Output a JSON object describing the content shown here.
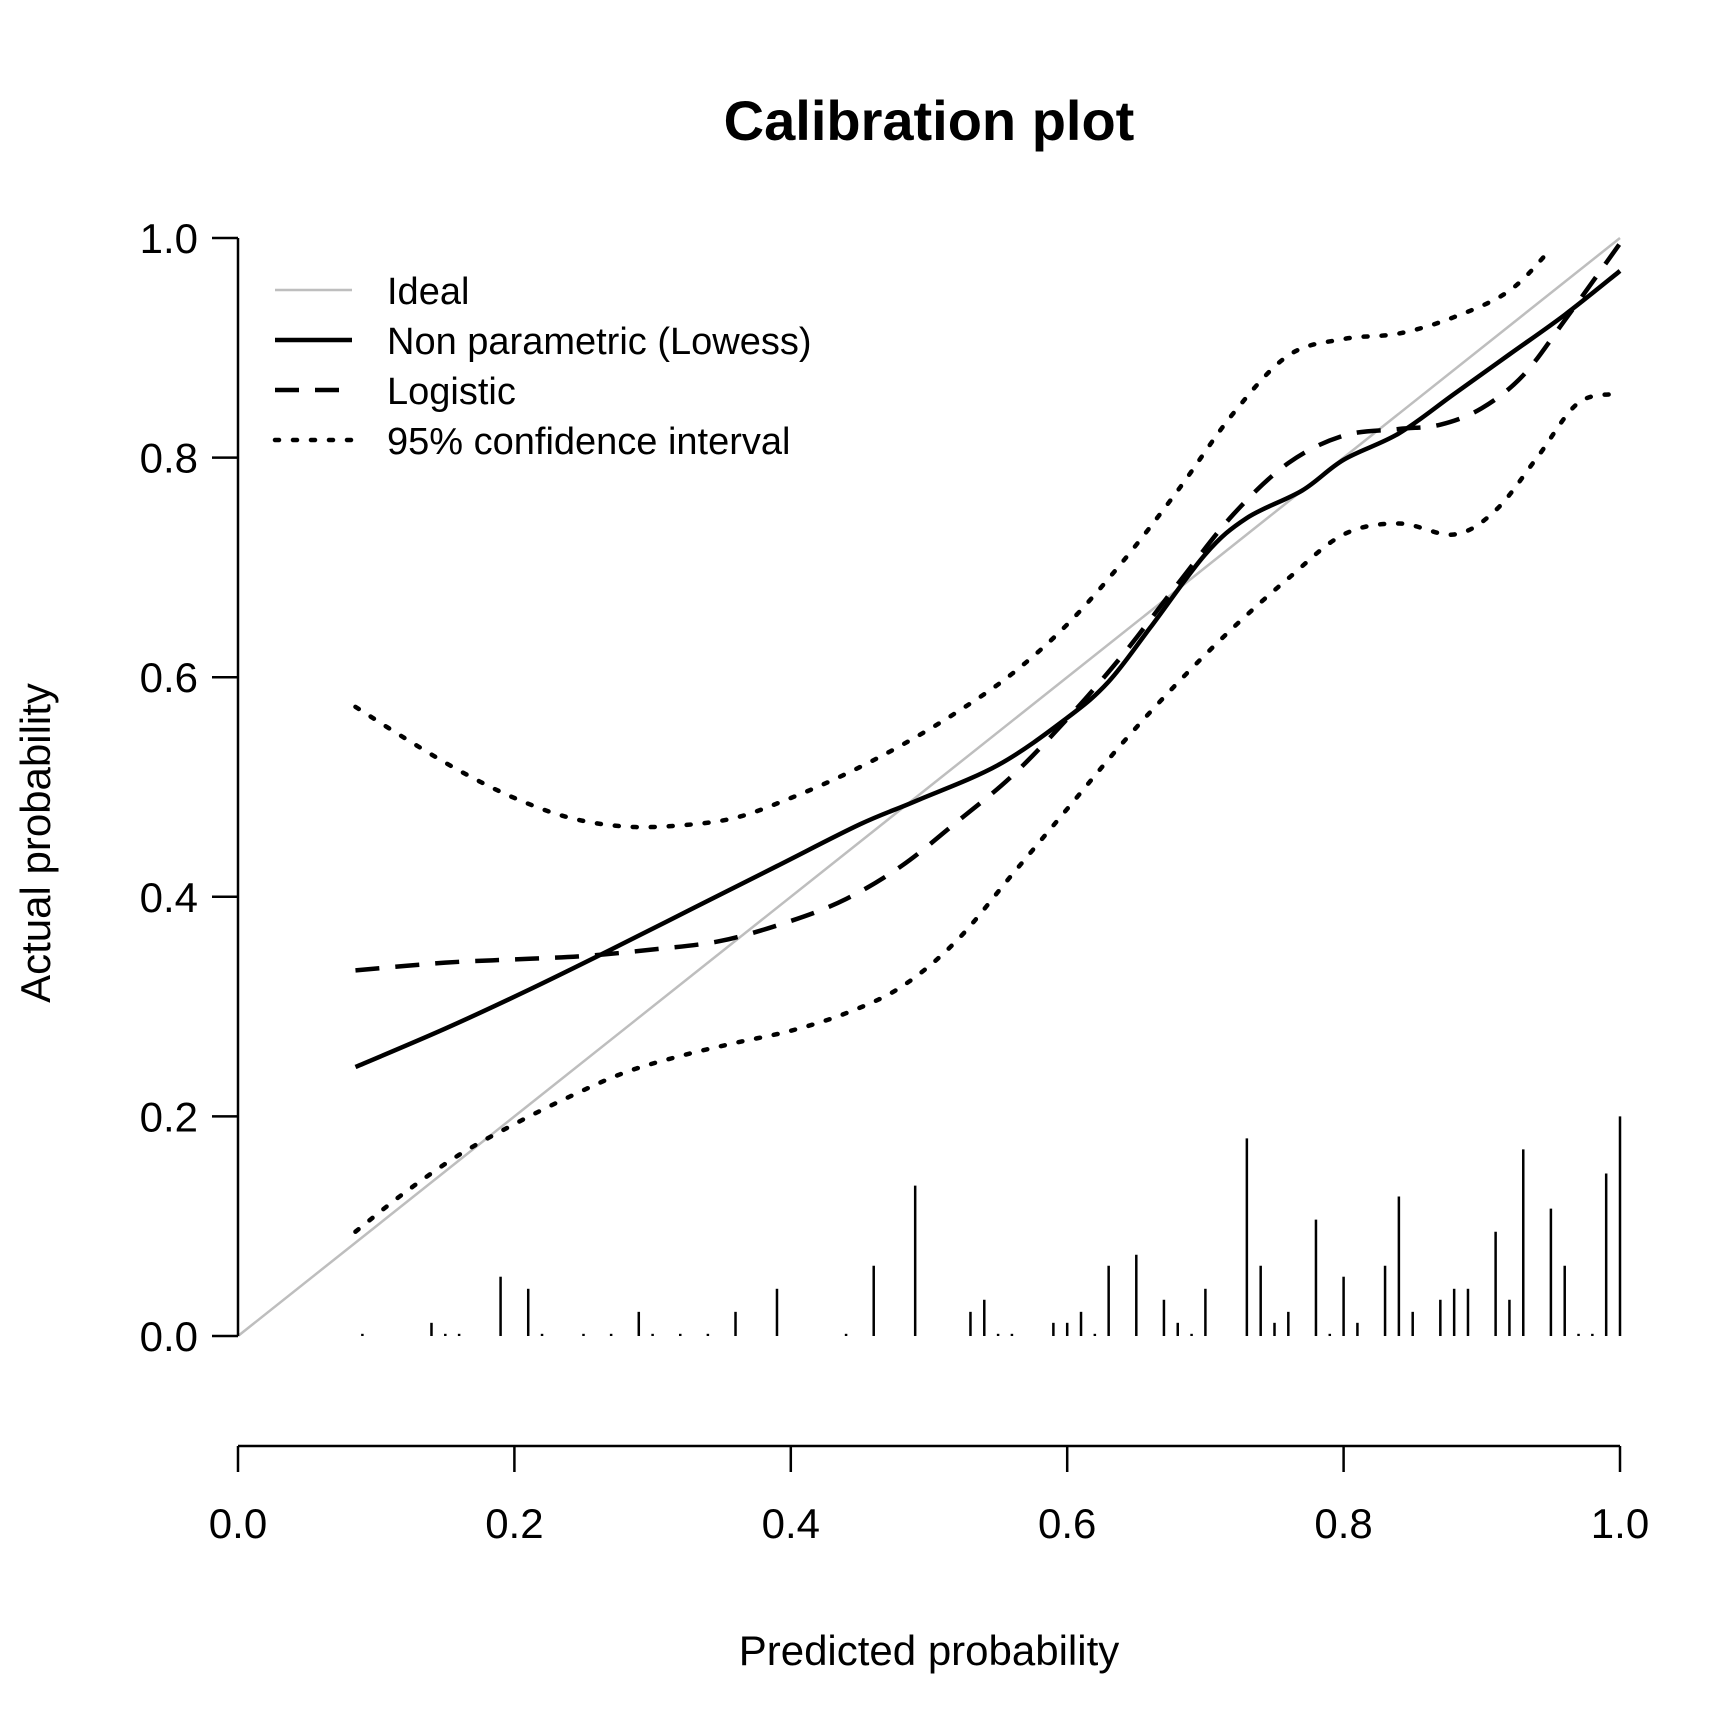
{
  "chart_data": {
    "type": "line",
    "title": "Calibration plot",
    "xlabel": "Predicted probability",
    "ylabel": "Actual probability",
    "xlim": [
      0,
      1
    ],
    "ylim": [
      0,
      1
    ],
    "x_ticks": [
      "0.0",
      "0.2",
      "0.4",
      "0.6",
      "0.8",
      "1.0"
    ],
    "y_ticks": [
      "0.0",
      "0.2",
      "0.4",
      "0.6",
      "0.8",
      "1.0"
    ],
    "grid": false,
    "legend_position": "top-left",
    "legend": [
      {
        "label": "Ideal",
        "style": "solid-gray"
      },
      {
        "label": "Non parametric (Lowess)",
        "style": "solid"
      },
      {
        "label": "Logistic",
        "style": "dashed"
      },
      {
        "label": "95% confidence interval",
        "style": "dotted"
      }
    ],
    "series": [
      {
        "name": "Ideal",
        "style": "solid-gray",
        "color": "#bebebe",
        "x": [
          0,
          1
        ],
        "y": [
          0,
          1
        ]
      },
      {
        "name": "Non parametric (Lowess)",
        "style": "solid",
        "color": "#000000",
        "x": [
          0.085,
          0.15,
          0.21,
          0.27,
          0.33,
          0.39,
          0.45,
          0.49,
          0.55,
          0.6,
          0.63,
          0.66,
          0.7,
          0.73,
          0.77,
          0.8,
          0.84,
          0.88,
          0.92,
          0.96,
          1.0
        ],
        "y": [
          0.245,
          0.28,
          0.315,
          0.352,
          0.39,
          0.428,
          0.466,
          0.487,
          0.52,
          0.563,
          0.596,
          0.645,
          0.712,
          0.745,
          0.77,
          0.798,
          0.822,
          0.858,
          0.894,
          0.93,
          0.97
        ]
      },
      {
        "name": "Logistic",
        "style": "dashed",
        "color": "#000000",
        "x": [
          0.085,
          0.15,
          0.2,
          0.25,
          0.3,
          0.35,
          0.4,
          0.44,
          0.48,
          0.52,
          0.56,
          0.6,
          0.64,
          0.68,
          0.72,
          0.76,
          0.8,
          0.84,
          0.87,
          0.9,
          0.93,
          0.96,
          1.0
        ],
        "y": [
          0.333,
          0.34,
          0.343,
          0.346,
          0.352,
          0.36,
          0.378,
          0.398,
          0.428,
          0.468,
          0.51,
          0.562,
          0.62,
          0.685,
          0.748,
          0.795,
          0.82,
          0.826,
          0.83,
          0.845,
          0.875,
          0.925,
          0.995
        ]
      },
      {
        "name": "95% confidence interval (upper)",
        "style": "dotted",
        "color": "#000000",
        "x": [
          0.085,
          0.12,
          0.16,
          0.2,
          0.24,
          0.28,
          0.32,
          0.36,
          0.4,
          0.44,
          0.48,
          0.52,
          0.56,
          0.6,
          0.64,
          0.68,
          0.72,
          0.76,
          0.8,
          0.84,
          0.88,
          0.92,
          0.95
        ],
        "y": [
          0.573,
          0.545,
          0.515,
          0.49,
          0.472,
          0.464,
          0.465,
          0.472,
          0.49,
          0.512,
          0.538,
          0.568,
          0.603,
          0.648,
          0.705,
          0.77,
          0.84,
          0.893,
          0.908,
          0.913,
          0.928,
          0.952,
          0.99
        ]
      },
      {
        "name": "95% confidence interval (lower)",
        "style": "dotted",
        "color": "#000000",
        "x": [
          0.085,
          0.12,
          0.16,
          0.2,
          0.24,
          0.28,
          0.32,
          0.36,
          0.4,
          0.44,
          0.48,
          0.52,
          0.56,
          0.6,
          0.64,
          0.68,
          0.72,
          0.76,
          0.8,
          0.84,
          0.88,
          0.91,
          0.94,
          0.97,
          1.0
        ],
        "y": [
          0.095,
          0.13,
          0.165,
          0.193,
          0.218,
          0.24,
          0.255,
          0.267,
          0.278,
          0.294,
          0.318,
          0.36,
          0.42,
          0.48,
          0.54,
          0.595,
          0.645,
          0.69,
          0.73,
          0.74,
          0.73,
          0.752,
          0.8,
          0.85,
          0.858
        ]
      }
    ],
    "rug": {
      "baseline": 0,
      "x": [
        0.09,
        0.14,
        0.15,
        0.16,
        0.19,
        0.21,
        0.22,
        0.25,
        0.27,
        0.29,
        0.3,
        0.32,
        0.34,
        0.36,
        0.39,
        0.44,
        0.46,
        0.49,
        0.53,
        0.54,
        0.55,
        0.56,
        0.59,
        0.6,
        0.61,
        0.62,
        0.63,
        0.65,
        0.67,
        0.68,
        0.69,
        0.7,
        0.73,
        0.74,
        0.75,
        0.76,
        0.78,
        0.79,
        0.8,
        0.81,
        0.83,
        0.84,
        0.85,
        0.87,
        0.88,
        0.89,
        0.91,
        0.92,
        0.93,
        0.95,
        0.96,
        0.97,
        0.98,
        0.99,
        1.0
      ],
      "height": [
        0.002,
        0.012,
        0.002,
        0.002,
        0.054,
        0.043,
        0.002,
        0.002,
        0.002,
        0.022,
        0.002,
        0.002,
        0.002,
        0.022,
        0.043,
        0.002,
        0.064,
        0.137,
        0.022,
        0.033,
        0.002,
        0.002,
        0.012,
        0.012,
        0.022,
        0.002,
        0.064,
        0.074,
        0.033,
        0.012,
        0.002,
        0.043,
        0.18,
        0.064,
        0.012,
        0.022,
        0.106,
        0.002,
        0.054,
        0.012,
        0.064,
        0.127,
        0.022,
        0.033,
        0.043,
        0.043,
        0.095,
        0.033,
        0.17,
        0.116,
        0.064,
        0.002,
        0.002,
        0.148,
        0.2
      ]
    }
  }
}
